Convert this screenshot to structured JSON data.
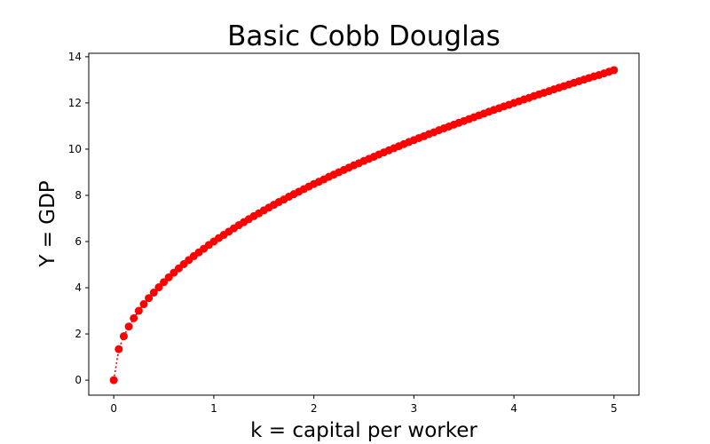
{
  "chart_data": {
    "type": "line",
    "title": "Basic Cobb Douglas",
    "xlabel": "k = capital per worker",
    "ylabel": "Y = GDP",
    "xlim": [
      -0.25,
      5.25
    ],
    "ylim": [
      -0.65,
      14.15
    ],
    "xticks": [
      0,
      1,
      2,
      3,
      4,
      5
    ],
    "yticks": [
      0,
      2,
      4,
      6,
      8,
      10,
      12,
      14
    ],
    "grid": false,
    "series": [
      {
        "color": "#ff0000",
        "line_style": "dotted",
        "marker": "circle",
        "function": "Y = 6 * k^0.5",
        "x_start": 0,
        "x_end": 5,
        "num_points": 101,
        "x": [
          0.0,
          0.05,
          0.1,
          0.15,
          0.2,
          0.25,
          0.3,
          0.35,
          0.4,
          0.45,
          0.5,
          0.55,
          0.6,
          0.65,
          0.7,
          0.75,
          0.8,
          0.85,
          0.9,
          0.95,
          1.0,
          1.05,
          1.1,
          1.15,
          1.2,
          1.25,
          1.3,
          1.35,
          1.4,
          1.45,
          1.5,
          1.55,
          1.6,
          1.65,
          1.7,
          1.75,
          1.8,
          1.85,
          1.9,
          1.95,
          2.0,
          2.05,
          2.1,
          2.15,
          2.2,
          2.25,
          2.3,
          2.35,
          2.4,
          2.45,
          2.5,
          2.55,
          2.6,
          2.65,
          2.7,
          2.75,
          2.8,
          2.85,
          2.9,
          2.95,
          3.0,
          3.05,
          3.1,
          3.15,
          3.2,
          3.25,
          3.3,
          3.35,
          3.4,
          3.45,
          3.5,
          3.55,
          3.6,
          3.65,
          3.7,
          3.75,
          3.8,
          3.85,
          3.9,
          3.95,
          4.0,
          4.05,
          4.1,
          4.15,
          4.2,
          4.25,
          4.3,
          4.35,
          4.4,
          4.45,
          4.5,
          4.55,
          4.6,
          4.65,
          4.7,
          4.75,
          4.8,
          4.85,
          4.9,
          4.95,
          5.0
        ],
        "y": [
          0.0,
          1.34,
          1.9,
          2.32,
          2.68,
          3.0,
          3.29,
          3.55,
          3.79,
          4.02,
          4.24,
          4.45,
          4.65,
          4.84,
          5.02,
          5.2,
          5.37,
          5.53,
          5.69,
          5.85,
          6.0,
          6.15,
          6.29,
          6.43,
          6.57,
          6.71,
          6.84,
          6.97,
          7.1,
          7.22,
          7.35,
          7.47,
          7.59,
          7.71,
          7.82,
          7.94,
          8.05,
          8.16,
          8.27,
          8.38,
          8.49,
          8.59,
          8.69,
          8.8,
          8.9,
          9.0,
          9.1,
          9.2,
          9.3,
          9.39,
          9.49,
          9.58,
          9.67,
          9.77,
          9.86,
          9.95,
          10.04,
          10.13,
          10.22,
          10.31,
          10.39,
          10.48,
          10.56,
          10.65,
          10.73,
          10.82,
          10.9,
          10.98,
          11.06,
          11.14,
          11.22,
          11.3,
          11.38,
          11.46,
          11.54,
          11.62,
          11.7,
          11.77,
          11.85,
          11.92,
          12.0,
          12.07,
          12.15,
          12.22,
          12.3,
          12.37,
          12.44,
          12.51,
          12.59,
          12.66,
          12.73,
          12.8,
          12.87,
          12.94,
          13.01,
          13.08,
          13.15,
          13.21,
          13.28,
          13.35,
          13.42
        ]
      }
    ]
  }
}
